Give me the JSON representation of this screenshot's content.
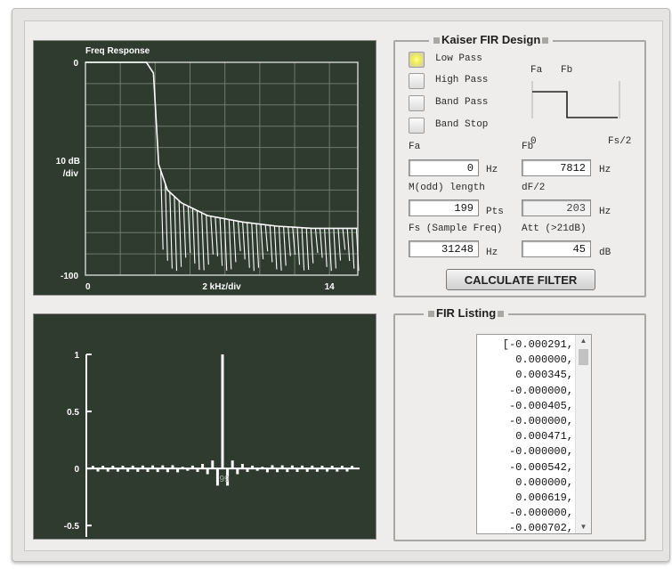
{
  "freq_plot": {
    "title": "Freq Response",
    "y_top": "0",
    "y_scale_line1": "10 dB",
    "y_scale_line2": "/div",
    "y_bottom": "-100",
    "x_left": "0",
    "x_mid": "2 kHz/div",
    "x_right": "14"
  },
  "impulse_plot": {
    "y_labels": [
      "1",
      "0.5",
      "0",
      "-0.5"
    ],
    "center_marker": "99"
  },
  "design": {
    "title": "Kaiser FIR Design",
    "filter_types": [
      {
        "label": "Low Pass",
        "selected": true
      },
      {
        "label": "High Pass",
        "selected": false
      },
      {
        "label": "Band Pass",
        "selected": false
      },
      {
        "label": "Band Stop",
        "selected": false
      }
    ],
    "diagram": {
      "fa": "Fa",
      "fb": "Fb",
      "zero": "0",
      "fs2": "Fs/2"
    },
    "fa_label": "Fa",
    "fa_value": "0",
    "fa_unit": "Hz",
    "fb_label": "Fb",
    "fb_value": "7812",
    "fb_unit": "Hz",
    "m_label": "M(odd) length",
    "m_value": "199",
    "m_unit": "Pts",
    "df_label": "dF/2",
    "df_value": "203",
    "df_unit": "Hz",
    "fs_label": "Fs (Sample Freq)",
    "fs_value": "31248",
    "fs_unit": "Hz",
    "att_label": "Att (>21dB)",
    "att_value": "45",
    "att_unit": "dB",
    "calc_button": "CALCULATE FILTER"
  },
  "listing": {
    "title": "FIR Listing",
    "lines": [
      "[-0.000291,",
      "0.000000,",
      "0.000345,",
      "-0.000000,",
      "-0.000405,",
      "-0.000000,",
      "0.000471,",
      "-0.000000,",
      "-0.000542,",
      "0.000000,",
      "0.000619,",
      "-0.000000,",
      "-0.000702,"
    ]
  },
  "chart_data": [
    {
      "type": "line",
      "title": "Freq Response",
      "xlabel": "2 kHz/div",
      "ylabel": "10 dB /div",
      "xlim": [
        0,
        15.624
      ],
      "ylim": [
        -100,
        0
      ],
      "grid": true,
      "series": [
        {
          "x": [
            0,
            3.5,
            3.9,
            4.2,
            4.7,
            5.5,
            7,
            9,
            11,
            13,
            15.6
          ],
          "y": [
            0,
            0,
            -5,
            -48,
            -60,
            -66,
            -72,
            -75,
            -77,
            -78,
            -78
          ]
        }
      ]
    },
    {
      "type": "bar",
      "ylim": [
        -0.6,
        1
      ],
      "grid": false,
      "x": [
        -8,
        -7,
        -6,
        -5,
        -4,
        -3,
        -2,
        -1,
        0,
        1,
        2,
        3,
        4,
        5,
        6,
        7,
        8
      ],
      "values": [
        0.015,
        -0.02,
        0.025,
        -0.03,
        0.04,
        -0.05,
        0.07,
        -0.15,
        1.0,
        -0.15,
        0.07,
        -0.05,
        0.04,
        -0.03,
        0.025,
        -0.02,
        0.015
      ]
    }
  ]
}
